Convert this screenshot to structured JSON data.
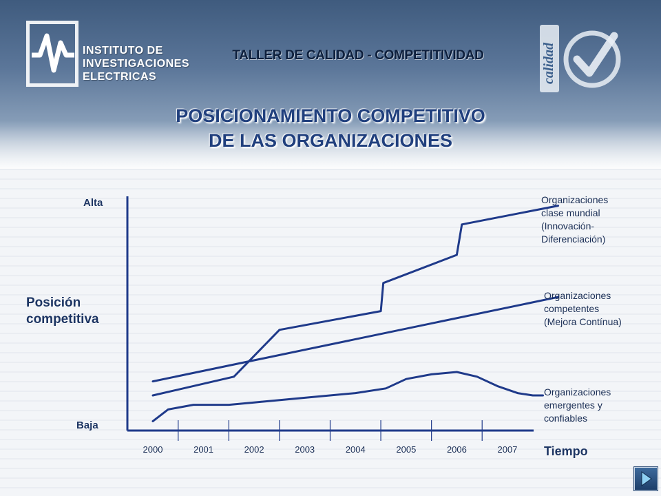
{
  "header": {
    "institute_lines": [
      "INSTITUTO DE",
      "INVESTIGACIONES",
      "ELECTRICAS"
    ],
    "workshop_title": "TALLER DE CALIDAD - COMPETITIVIDAD",
    "badge_text": "calidad",
    "logo_icon": "iie-wave-logo-icon",
    "badge_icon": "check-mark-icon"
  },
  "slide": {
    "title_lines": [
      "POSICIONAMIENTO COMPETITIVO",
      "DE LAS ORGANIZACIONES"
    ]
  },
  "nav": {
    "next_icon": "next-slide-arrow-icon"
  },
  "colors": {
    "series": "#1f3a8a",
    "axis": "#1f3a8a",
    "text": "#1d3563"
  },
  "chart_data": {
    "type": "line",
    "ylabel": "Posición competitiva",
    "ylabel_lines": [
      "Posición",
      "competitiva"
    ],
    "y_top_label": "Alta",
    "y_bottom_label": "Baja",
    "xlabel": "Tiempo",
    "categories": [
      "2000",
      "2001",
      "2002",
      "2003",
      "2004",
      "2005",
      "2006",
      "2007"
    ],
    "x_range": [
      1999.6,
      2008.3
    ],
    "y_range": [
      0,
      100
    ],
    "grid": false,
    "legend_placement": "right (labels at line ends)",
    "series": [
      {
        "name": "Organizaciones clase mundial (Innovación-Diferenciación)",
        "label_lines": [
          "Organizaciones",
          "clase mundial",
          "(Innovación-",
          "Diferenciación)"
        ],
        "x": [
          2000.0,
          2001.6,
          2002.5,
          2004.5,
          2004.55,
          2006.0,
          2006.1,
          2008.0
        ],
        "y": [
          15,
          23,
          43,
          51,
          63,
          75,
          88,
          96
        ]
      },
      {
        "name": "Organizaciones competentes (Mejora Continua)",
        "label_lines": [
          "Organizaciones",
          "competentes",
          "(Mejora Contínua)"
        ],
        "x": [
          2000.0,
          2008.0
        ],
        "y": [
          21,
          57
        ]
      },
      {
        "name": "Organizaciones emergentes y confiables",
        "label_lines": [
          "Organizaciones",
          "emergentes y",
          "confiables"
        ],
        "x": [
          2000.0,
          2000.3,
          2000.8,
          2001.5,
          2002.0,
          2003.0,
          2004.0,
          2004.6,
          2005.0,
          2005.5,
          2006.0,
          2006.4,
          2006.8,
          2007.2,
          2007.5,
          2007.7
        ],
        "y": [
          4,
          9,
          11,
          11,
          12,
          14,
          16,
          18,
          22,
          24,
          25,
          23,
          19,
          16,
          15,
          15
        ]
      }
    ]
  }
}
